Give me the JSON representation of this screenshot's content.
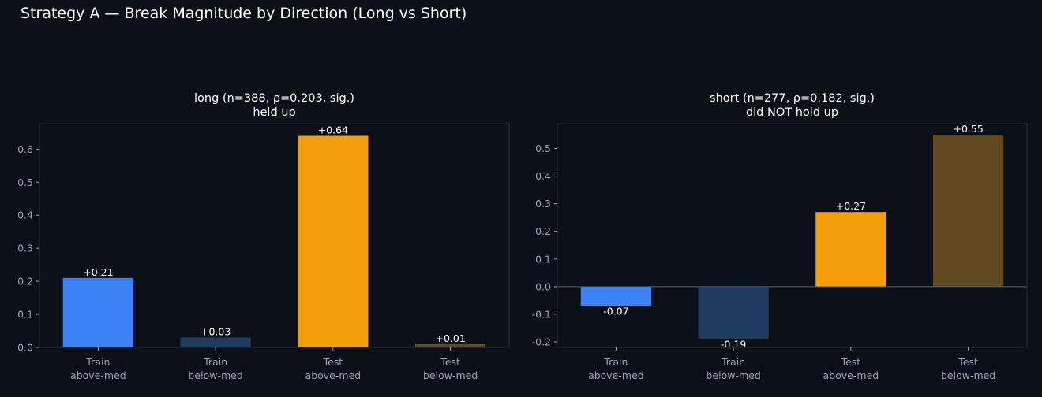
{
  "suptitle": "Strategy A — Break Magnitude by Direction (Long vs Short)",
  "chart_data": [
    {
      "type": "bar",
      "title": "long (n=388, ρ=0.203, sig.)",
      "subtitle": "held up",
      "categories": [
        [
          "Train",
          "above-med"
        ],
        [
          "Train",
          "below-med"
        ],
        [
          "Test",
          "above-med"
        ],
        [
          "Test",
          "below-med"
        ]
      ],
      "values": [
        0.21,
        0.03,
        0.64,
        0.01
      ],
      "value_labels": [
        "+0.21",
        "+0.03",
        "+0.64",
        "+0.01"
      ],
      "colors": [
        "#3b82f6",
        "#1e3a5f",
        "#f59e0b",
        "#5e4a1e"
      ],
      "ylim": [
        0,
        0.677
      ],
      "yticks": [
        0.0,
        0.1,
        0.2,
        0.3,
        0.4,
        0.5,
        0.6
      ],
      "ytick_labels": [
        "0.0",
        "0.1",
        "0.2",
        "0.3",
        "0.4",
        "0.5",
        "0.6"
      ],
      "xlabel": "",
      "ylabel": "",
      "grid": false
    },
    {
      "type": "bar",
      "title": "short (n=277, ρ=0.182, sig.)",
      "subtitle": "did NOT hold up",
      "categories": [
        [
          "Train",
          "above-med"
        ],
        [
          "Train",
          "below-med"
        ],
        [
          "Test",
          "above-med"
        ],
        [
          "Test",
          "below-med"
        ]
      ],
      "values": [
        -0.07,
        -0.19,
        0.27,
        0.55
      ],
      "value_labels": [
        "-0.07",
        "-0.19",
        "+0.27",
        "+0.55"
      ],
      "colors": [
        "#3b82f6",
        "#1e3a5f",
        "#f59e0b",
        "#5e4a1e"
      ],
      "ylim": [
        -0.22,
        0.59
      ],
      "yticks": [
        -0.2,
        -0.1,
        0.0,
        0.1,
        0.2,
        0.3,
        0.4,
        0.5
      ],
      "ytick_labels": [
        "-0.2",
        "-0.1",
        "0.0",
        "0.1",
        "0.2",
        "0.3",
        "0.4",
        "0.5"
      ],
      "xlabel": "",
      "ylabel": "",
      "grid": false,
      "zero_line": true
    }
  ]
}
